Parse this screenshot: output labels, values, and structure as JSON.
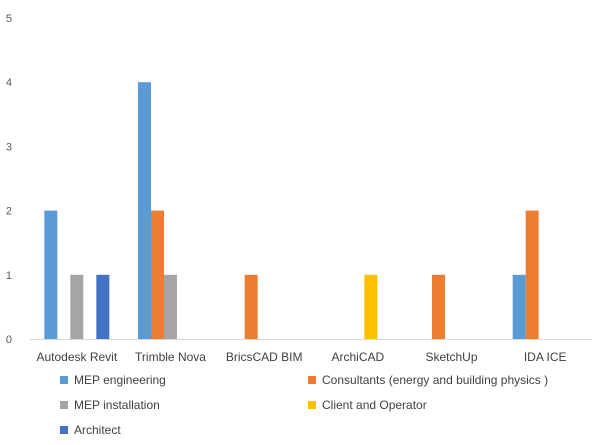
{
  "chart_data": {
    "type": "bar",
    "title": "",
    "xlabel": "",
    "ylabel": "",
    "ylim": [
      0,
      5
    ],
    "yticks": [
      0,
      1,
      2,
      3,
      4,
      5
    ],
    "grid": false,
    "legend_position": "bottom",
    "categories": [
      "Autodesk Revit",
      "Trimble Nova",
      "BricsCAD BIM",
      "ArchiCAD",
      "SketchUp",
      "IDA ICE"
    ],
    "series": [
      {
        "name": "MEP engineering",
        "color": "#5B9BD5",
        "values": [
          2,
          4,
          0,
          0,
          0,
          1
        ]
      },
      {
        "name": "Consultants (energy and building physics )",
        "color": "#ED7D31",
        "values": [
          0,
          2,
          1,
          0,
          1,
          2
        ]
      },
      {
        "name": "MEP installation",
        "color": "#A5A5A5",
        "values": [
          1,
          1,
          0,
          0,
          0,
          0
        ]
      },
      {
        "name": "Client and Operator",
        "color": "#FFC000",
        "values": [
          0,
          0,
          0,
          1,
          0,
          0
        ]
      },
      {
        "name": "Architect",
        "color": "#4472C4",
        "values": [
          1,
          0,
          0,
          0,
          0,
          0
        ]
      }
    ]
  }
}
